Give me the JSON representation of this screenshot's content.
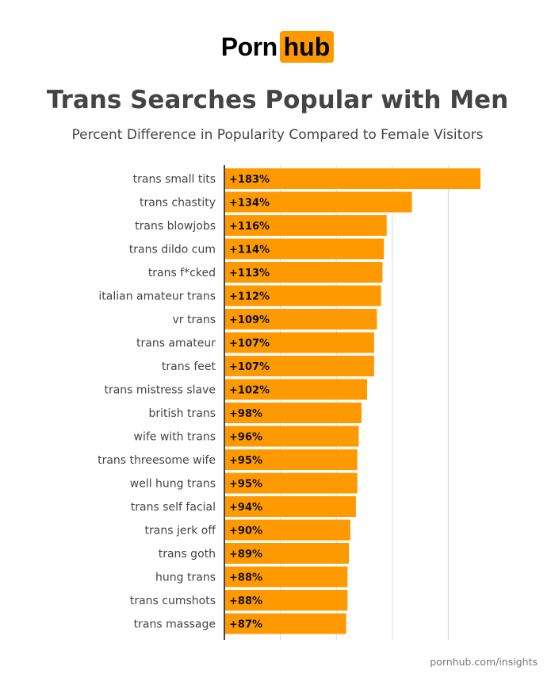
{
  "logo": {
    "text_left": "Porn",
    "text_right": "hub",
    "accent": "#ff9900"
  },
  "chart_data": {
    "type": "bar",
    "orientation": "horizontal",
    "title": "Trans Searches Popular with Men",
    "subtitle": "Percent Difference in Popularity Compared to Female Visitors",
    "categories": [
      "trans small tits",
      "trans chastity",
      "trans blowjobs",
      "trans dildo cum",
      "trans f*cked",
      "italian amateur trans",
      "vr trans",
      "trans amateur",
      "trans feet",
      "trans mistress slave",
      "british trans",
      "wife with trans",
      "trans threesome wife",
      "well hung trans",
      "trans self facial",
      "trans jerk off",
      "trans goth",
      "hung trans",
      "trans cumshots",
      "trans massage"
    ],
    "values": [
      183,
      134,
      116,
      114,
      113,
      112,
      109,
      107,
      107,
      102,
      98,
      96,
      95,
      95,
      94,
      90,
      89,
      88,
      88,
      87
    ],
    "labels": [
      "+183%",
      "+134%",
      "+116%",
      "+114%",
      "+113%",
      "+112%",
      "+109%",
      "+107%",
      "+107%",
      "+102%",
      "+98%",
      "+96%",
      "+95%",
      "+95%",
      "+94%",
      "+90%",
      "+89%",
      "+88%",
      "+88%",
      "+87%"
    ],
    "xlim": [
      0,
      200
    ],
    "gridlines": [
      40,
      80,
      120,
      160
    ],
    "grid": true,
    "bar_color": "#ff9900"
  },
  "footer": "pornhub.com/insights"
}
